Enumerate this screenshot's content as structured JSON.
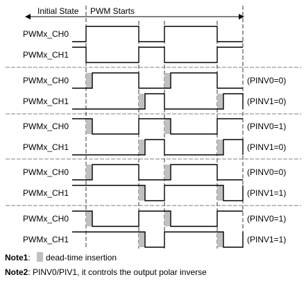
{
  "header": {
    "initial_state": "Initial State",
    "pwm_starts": "PWM Starts"
  },
  "groups": [
    {
      "rows": [
        {
          "label": "PWMx_CH0",
          "init": 0,
          "edges": [
            124,
            200,
            237,
            313
          ],
          "deadtime": [],
          "note": ""
        },
        {
          "label": "PWMx_CH1",
          "init": 1,
          "edges": [
            124,
            200,
            237,
            313
          ],
          "deadtime": [],
          "note": ""
        }
      ]
    },
    {
      "rows": [
        {
          "label": "PWMx_CH0",
          "init": 0,
          "edges": [
            133,
            200,
            246,
            313
          ],
          "deadtime": [
            124,
            237
          ],
          "note": "(PINV0=0)"
        },
        {
          "label": "PWMx_CH1",
          "init": 0,
          "edges": [
            209,
            237,
            322,
            350
          ],
          "deadtime": [
            200,
            313
          ],
          "note": "(PINV1=0)"
        }
      ]
    },
    {
      "rows": [
        {
          "label": "PWMx_CH0",
          "init": 1,
          "edges": [
            133,
            200,
            246,
            313
          ],
          "deadtime": [
            124,
            237
          ],
          "note": "(PINV0=1)"
        },
        {
          "label": "PWMx_CH1",
          "init": 0,
          "edges": [
            209,
            237,
            322,
            350
          ],
          "deadtime": [
            200,
            313
          ],
          "note": "(PINV1=0)"
        }
      ]
    },
    {
      "rows": [
        {
          "label": "PWMx_CH0",
          "init": 0,
          "edges": [
            133,
            200,
            246,
            313
          ],
          "deadtime": [
            124,
            237
          ],
          "note": "(PINV0=0)"
        },
        {
          "label": "PWMx_CH1",
          "init": 1,
          "edges": [
            209,
            237,
            322,
            350
          ],
          "deadtime": [
            200,
            313
          ],
          "note": "(PINV1=1)"
        }
      ]
    },
    {
      "rows": [
        {
          "label": "PWMx_CH0",
          "init": 1,
          "edges": [
            133,
            200,
            246,
            313
          ],
          "deadtime": [
            124,
            237
          ],
          "note": "(PINV0=1)"
        },
        {
          "label": "PWMx_CH1",
          "init": 1,
          "edges": [
            209,
            237,
            322,
            350
          ],
          "deadtime": [
            200,
            313
          ],
          "note": "(PINV1=1)"
        }
      ]
    }
  ],
  "notes": {
    "note1_label": "Note1",
    "note1_text": "dead-time insertion",
    "note2_label": "Note2",
    "note2_text": ": PINV0/PIV1, it controls the output polar inverse"
  }
}
